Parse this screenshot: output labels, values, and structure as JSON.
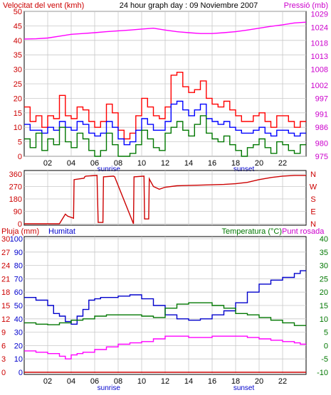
{
  "header": {
    "left_label": "Velocitat del vent (kmh)",
    "title": "24 hour graph day : 09 Noviembre 2007",
    "right_label": "Pressió (mb)"
  },
  "panel2_header": {
    "rain_label": "Pluja (mm)",
    "humidity_label": "Humitat",
    "temp_label": "Temperatura (°C)",
    "dew_label": "Punt rosada"
  },
  "x_tick_labels": [
    "02",
    "04",
    "06",
    "08",
    "10",
    "12",
    "14",
    "16",
    "18",
    "20",
    "22"
  ],
  "sun_labels": {
    "sunrise": "sunrise",
    "sunset": "sunset"
  },
  "compass_labels": [
    "N",
    "W",
    "S",
    "E",
    "N"
  ],
  "colors": {
    "background": "#ffffff",
    "frame": "#000000",
    "grid": "#c8c8c8",
    "wind_gust": "#ff0000",
    "wind_avg": "#0000ff",
    "wind_low": "#007700",
    "pressure": "#ff00ff",
    "direction": "#cc0000",
    "humidity": "#0000cc",
    "temperature": "#007700",
    "dewpoint": "#ff00ff",
    "rain": "#cc0000",
    "label_red": "#cc0000",
    "label_magenta": "#cc00cc",
    "label_blue": "#0000cc",
    "label_green": "#007700"
  },
  "chart_data": [
    {
      "type": "line",
      "panel": "wind_pressure",
      "title": "24 hour graph day : 09 Noviembre 2007",
      "xlabel": "",
      "x_range_hours": [
        0,
        24
      ],
      "x_ticks_hours": [
        2,
        4,
        6,
        8,
        10,
        12,
        14,
        16,
        18,
        20,
        22
      ],
      "ylabel_left": "Velocitat del vent (kmh)",
      "ylim_left": [
        0,
        50
      ],
      "yticks_left": [
        0,
        5,
        10,
        15,
        20,
        25,
        30,
        35,
        40,
        45,
        50
      ],
      "ylabel_right": "Pressió (mb)",
      "ylim_right": [
        975,
        1030
      ],
      "yticks_right": [
        975,
        980,
        986,
        991,
        997,
        1002,
        1008,
        1013,
        1018,
        1024,
        1029
      ],
      "grid": true,
      "annotations": [
        {
          "text": "sunrise",
          "x_hour": 7.2
        },
        {
          "text": "sunset",
          "x_hour": 18.7
        }
      ],
      "series": [
        {
          "name": "Velocitat del vent (kmh)",
          "axis": "left",
          "color": "#ff0000",
          "style": "step",
          "x_hours": [
            0,
            0.5,
            1,
            1.5,
            2,
            2.5,
            3,
            3.5,
            4,
            4.5,
            5,
            5.5,
            6,
            6.5,
            7,
            7.5,
            8,
            8.5,
            9,
            9.5,
            10,
            10.5,
            11,
            11.5,
            12,
            12.5,
            13,
            13.5,
            14,
            14.5,
            15,
            15.5,
            16,
            16.5,
            17,
            17.5,
            18,
            18.5,
            19,
            19.5,
            20,
            20.5,
            21,
            21.5,
            22,
            22.5,
            23,
            23.5
          ],
          "values": [
            17,
            12,
            14,
            10,
            14,
            13,
            21,
            14,
            13,
            17,
            16,
            12,
            10,
            12,
            18,
            15,
            9,
            6,
            8,
            14,
            20,
            17,
            14,
            13,
            17,
            28,
            29,
            24,
            22,
            23,
            26,
            20,
            18,
            17,
            19,
            16,
            14,
            12,
            12,
            14,
            15,
            12,
            10,
            14,
            14,
            12,
            10,
            12
          ]
        },
        {
          "name": "",
          "axis": "left",
          "color": "#0000ff",
          "style": "step",
          "x_hours": [
            0,
            0.5,
            1,
            1.5,
            2,
            2.5,
            3,
            3.5,
            4,
            4.5,
            5,
            5.5,
            6,
            6.5,
            7,
            7.5,
            8,
            8.5,
            9,
            9.5,
            10,
            10.5,
            11,
            11.5,
            12,
            12.5,
            13,
            13.5,
            14,
            14.5,
            15,
            15.5,
            16,
            16.5,
            17,
            17.5,
            18,
            18.5,
            19,
            19.5,
            20,
            20.5,
            21,
            21.5,
            22,
            22.5,
            23,
            23.5
          ],
          "values": [
            11,
            9,
            9,
            8,
            10,
            9,
            12,
            10,
            9,
            12,
            11,
            8,
            7,
            8,
            12,
            10,
            6,
            4,
            5,
            9,
            13,
            11,
            9,
            9,
            12,
            18,
            19,
            16,
            14,
            16,
            18,
            13,
            12,
            11,
            12,
            10,
            9,
            8,
            8,
            9,
            10,
            8,
            7,
            9,
            9,
            8,
            7,
            8
          ]
        },
        {
          "name": "",
          "axis": "left",
          "color": "#007700",
          "style": "step",
          "x_hours": [
            0,
            0.5,
            1,
            1.5,
            2,
            2.5,
            3,
            3.5,
            4,
            4.5,
            5,
            5.5,
            6,
            6.5,
            7,
            7.5,
            8,
            8.5,
            9,
            9.5,
            10,
            10.5,
            11,
            11.5,
            12,
            12.5,
            13,
            13.5,
            14,
            14.5,
            15,
            15.5,
            16,
            16.5,
            17,
            17.5,
            18,
            18.5,
            19,
            19.5,
            20,
            20.5,
            21,
            21.5,
            22,
            22.5,
            23,
            23.5
          ],
          "values": [
            6,
            3,
            8,
            2,
            6,
            4,
            10,
            5,
            3,
            8,
            6,
            2,
            0,
            2,
            8,
            4,
            0,
            0,
            1,
            4,
            9,
            6,
            3,
            2,
            8,
            10,
            12,
            9,
            7,
            11,
            14,
            8,
            6,
            5,
            7,
            4,
            2,
            0,
            3,
            4,
            6,
            3,
            1,
            5,
            4,
            2,
            1,
            4
          ]
        },
        {
          "name": "Pressió (mb)",
          "axis": "right",
          "color": "#ff00ff",
          "style": "line",
          "x_hours": [
            0,
            1,
            2,
            3,
            4,
            5,
            6,
            7,
            8,
            9,
            10,
            11,
            12,
            13,
            14,
            15,
            16,
            17,
            18,
            19,
            20,
            21,
            22,
            23,
            24
          ],
          "values": [
            1019.5,
            1019.6,
            1019.9,
            1020.6,
            1021.3,
            1021.6,
            1021.9,
            1022.3,
            1022.6,
            1022.9,
            1023.3,
            1023.6,
            1022.9,
            1022.3,
            1021.9,
            1021.6,
            1021.6,
            1021.9,
            1022.3,
            1022.9,
            1023.6,
            1024.3,
            1024.9,
            1025.6,
            1025.9
          ]
        }
      ]
    },
    {
      "type": "line",
      "panel": "wind_direction",
      "xlabel": "",
      "x_range_hours": [
        0,
        24
      ],
      "x_ticks_hours": [
        2,
        4,
        6,
        8,
        10,
        12,
        14,
        16,
        18,
        20,
        22
      ],
      "ylabel_left": "",
      "ylim_left": [
        0,
        360
      ],
      "yticks_left": [
        0,
        90,
        180,
        270,
        360
      ],
      "right_tick_labels": [
        "N",
        "W",
        "S",
        "E",
        "N"
      ],
      "grid": true,
      "annotations": [
        {
          "text": "sunrise",
          "x_hour": 7.2
        },
        {
          "text": "sunset",
          "x_hour": 18.7
        }
      ],
      "series": [
        {
          "name": "",
          "axis": "left",
          "color": "#cc0000",
          "style": "line",
          "x_hours": [
            0,
            3.0,
            3.5,
            3.7,
            4.2,
            4.25,
            5.1,
            5.15,
            5.25,
            6.2,
            6.3,
            6.7,
            6.75,
            7.6,
            7.7,
            9.3,
            9.35,
            10.2,
            10.25,
            10.6,
            10.65,
            11.0,
            11.5,
            12.0,
            13.0,
            15.0,
            17.0,
            18.0,
            19.0,
            20.0,
            21.0,
            22.0,
            23.0,
            24.0
          ],
          "values": [
            0,
            0,
            70,
            55,
            40,
            320,
            330,
            340,
            345,
            350,
            10,
            10,
            340,
            345,
            340,
            0,
            340,
            345,
            35,
            35,
            325,
            270,
            250,
            265,
            275,
            280,
            285,
            290,
            300,
            320,
            335,
            345,
            350,
            350
          ]
        }
      ]
    },
    {
      "type": "line",
      "panel": "humidity_temperature",
      "xlabel": "",
      "x_range_hours": [
        0,
        24
      ],
      "x_ticks_hours": [
        2,
        4,
        6,
        8,
        10,
        12,
        14,
        16,
        18,
        20,
        22
      ],
      "ylabel_left": "Pluja (mm)",
      "ylim_left": [
        0,
        30
      ],
      "yticks_left": [
        0,
        3,
        6,
        9,
        12,
        15,
        18,
        21,
        24,
        27,
        30
      ],
      "ylabel_left2": "Humitat",
      "ylim_left2": [
        0,
        100
      ],
      "yticks_left2": [
        0,
        10,
        20,
        30,
        40,
        50,
        60,
        70,
        80,
        90,
        100
      ],
      "ylabel_right": "Temperatura (°C)",
      "ylim_right": [
        -10,
        40
      ],
      "yticks_right": [
        -10,
        -5,
        0,
        5,
        10,
        15,
        20,
        25,
        30,
        35,
        40
      ],
      "grid": true,
      "annotations": [
        {
          "text": "sunrise",
          "x_hour": 7.2
        },
        {
          "text": "sunset",
          "x_hour": 18.7
        }
      ],
      "series": [
        {
          "name": "Humitat",
          "axis": "left2",
          "color": "#0000cc",
          "style": "step",
          "x_hours": [
            0,
            1,
            2,
            2.5,
            3,
            3.5,
            4,
            4.5,
            5,
            5.5,
            6,
            6.5,
            7,
            8,
            9,
            10,
            11,
            12,
            13,
            14,
            15,
            16,
            17,
            18,
            19,
            20,
            21,
            22,
            23,
            23.5
          ],
          "values": [
            56,
            54,
            50,
            44,
            42,
            38,
            36,
            42,
            47,
            54,
            55,
            56,
            56,
            57,
            58,
            55,
            50,
            43,
            40,
            39,
            40,
            43,
            46,
            52,
            60,
            66,
            69,
            71,
            74,
            76
          ]
        },
        {
          "name": "Temperatura (°C)",
          "axis": "right",
          "color": "#007700",
          "style": "step",
          "x_hours": [
            0,
            1,
            2,
            3,
            4,
            5,
            6,
            7,
            8,
            9,
            10,
            11,
            12,
            13,
            14,
            15,
            16,
            17,
            18,
            19,
            20,
            21,
            22,
            23,
            23.5
          ],
          "values": [
            8.5,
            8.0,
            7.8,
            8.5,
            9.5,
            10.0,
            11.0,
            11.5,
            11.5,
            11.5,
            11.0,
            10.5,
            14.0,
            15.5,
            16.0,
            16.0,
            15.0,
            14.0,
            12.0,
            11.5,
            10.5,
            9.5,
            8.5,
            7.5,
            7.5
          ]
        },
        {
          "name": "Punt rosada",
          "axis": "right",
          "color": "#ff00ff",
          "style": "step",
          "x_hours": [
            0,
            1,
            2,
            3,
            3.5,
            4,
            4.5,
            5,
            6,
            7,
            8,
            9,
            10,
            11,
            12,
            13,
            14,
            15,
            16,
            17,
            18,
            19,
            20,
            21,
            22,
            23,
            23.5
          ],
          "values": [
            -2.0,
            -2.5,
            -3.0,
            -4.0,
            -5.0,
            -3.5,
            -3.0,
            -2.5,
            -1.5,
            -0.5,
            0.5,
            1.0,
            1.5,
            2.5,
            3.5,
            3.5,
            3.0,
            3.0,
            3.5,
            3.5,
            3.5,
            3.0,
            2.5,
            2.0,
            1.5,
            1.0,
            0.5
          ]
        },
        {
          "name": "Pluja (mm)",
          "axis": "left",
          "color": "#cc0000",
          "style": "line",
          "x_hours": [
            0,
            24
          ],
          "values": [
            0,
            0
          ]
        }
      ]
    }
  ]
}
